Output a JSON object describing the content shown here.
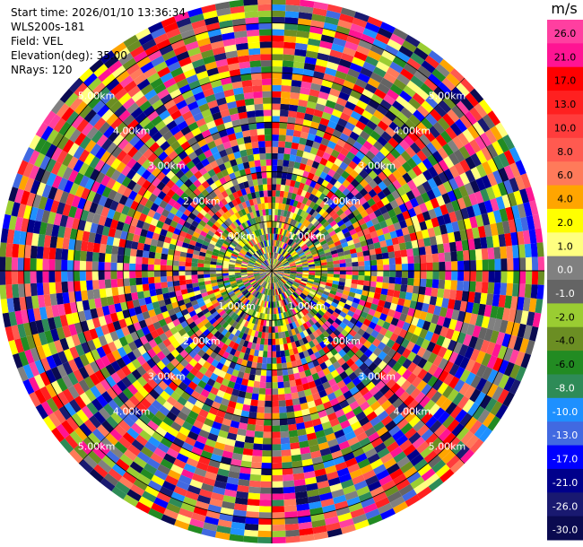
{
  "header": {
    "start_time": "Start time: 2026/01/10 13:36:34",
    "instrument": "WLS200s-181",
    "field": "Field: VEL",
    "elevation": "Elevation(deg): 35.00",
    "nrays": "NRays: 120"
  },
  "chart_data": {
    "type": "heatmap",
    "projection": "polar PPI",
    "field": "VEL",
    "nrays": 120,
    "range_ring_labels": [
      "1.00km",
      "2.00km",
      "3.00km",
      "4.00km",
      "5.00km"
    ],
    "range_ring_km": [
      1,
      2,
      3,
      4,
      5
    ],
    "units": "m/s",
    "colorbar_ticks": [
      "26.0",
      "21.0",
      "17.0",
      "13.0",
      "10.0",
      "8.0",
      "6.0",
      "4.0",
      "2.0",
      "1.0",
      "0.0",
      "-1.0",
      "-2.0",
      "-4.0",
      "-6.0",
      "-8.0",
      "-10.0",
      "-13.0",
      "-17.0",
      "-21.0",
      "-26.0",
      "-30.0"
    ],
    "colorbar_colors": [
      "#ff3fa0",
      "#ff1493",
      "#ff0000",
      "#ff2020",
      "#ff3c3c",
      "#ff5a50",
      "#ff7a5a",
      "#ffa500",
      "#ffff00",
      "#ffff80",
      "#808080",
      "#646464",
      "#9acd32",
      "#6b8e23",
      "#228b22",
      "#2e8b57",
      "#1e90ff",
      "#4169e1",
      "#0000ff",
      "#00008b",
      "#191970",
      "#0a0a50"
    ]
  }
}
